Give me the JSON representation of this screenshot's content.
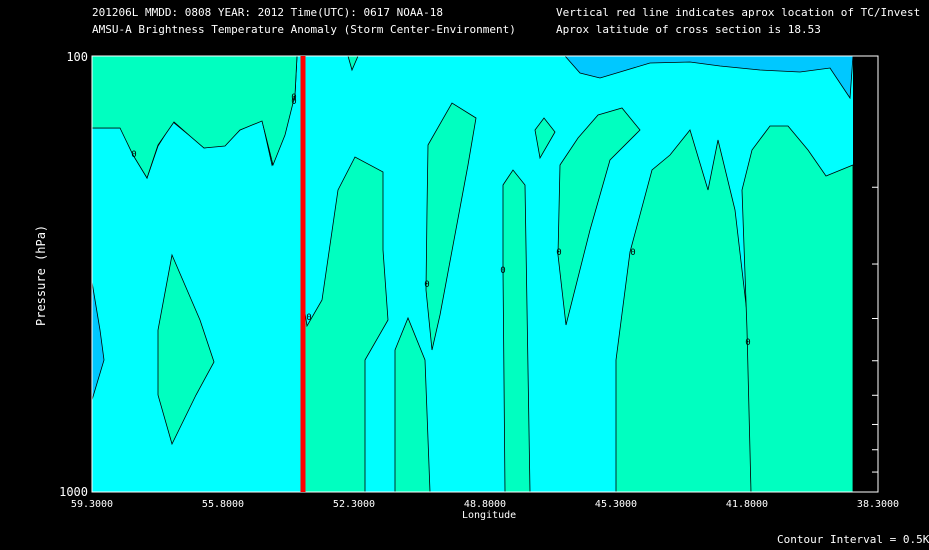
{
  "header": {
    "line1_left": "201206L  MMDD: 0808 YEAR: 2012 Time(UTC): 0617 NOAA-18",
    "line2_left": "AMSU-A Brightness Temperature Anomaly (Storm Center-Environment)",
    "line1_right": "Vertical red line indicates aprox location of TC/Invest",
    "line2_right": "Aprox latitude of cross section is 18.53"
  },
  "footer": {
    "contour_interval": "Contour Interval = 0.5K"
  },
  "chart_data": {
    "type": "heatmap",
    "title": "AMSU-A Brightness Temperature Anomaly (Storm Center-Environment)",
    "xlabel": "Longitude",
    "ylabel": "Pressure (hPa)",
    "x_ticks": [
      "59.3000",
      "55.8000",
      "52.3000",
      "48.8000",
      "45.3000",
      "41.8000",
      "38.3000"
    ],
    "y_ticks": [
      "100",
      "1000"
    ],
    "xlim": [
      59.3,
      38.3
    ],
    "ylim": [
      100,
      1000
    ],
    "y_scale": "log",
    "tc_longitude": 54.0,
    "contour_labels": [
      "0",
      "0",
      "0",
      "0",
      "0",
      "0",
      "0",
      "0",
      "0"
    ],
    "colors": {
      "background": "#000000",
      "zero_band": "#00ffff",
      "positive_band": "#00ffc0",
      "upper_positive": "#00f0a0",
      "negative_band": "#00c8ff",
      "deep_negative": "#0090ff",
      "tc_line": "#ff0000",
      "contour": "#000000"
    }
  }
}
